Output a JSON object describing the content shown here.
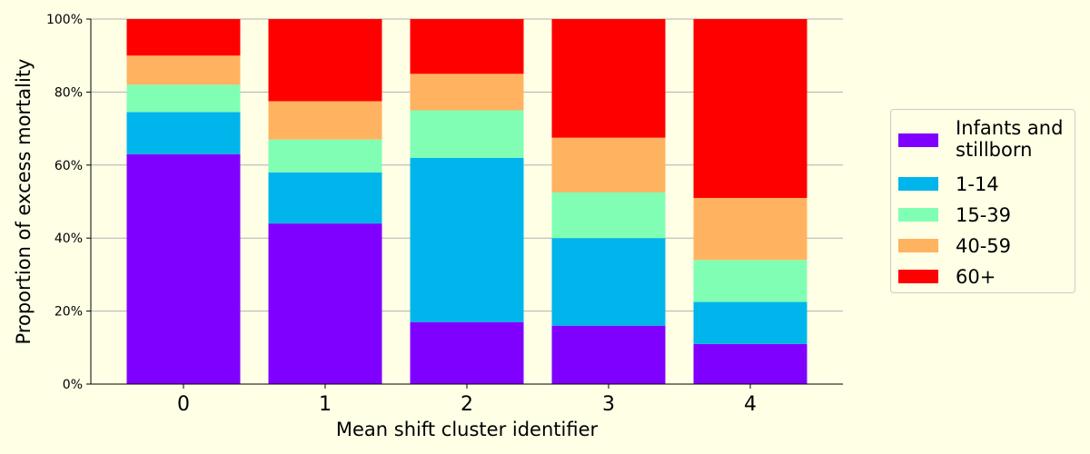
{
  "chart_data": {
    "type": "bar",
    "stacked": true,
    "categories": [
      "0",
      "1",
      "2",
      "3",
      "4"
    ],
    "xlabel": "Mean shift cluster identifier",
    "ylabel": "Proportion of excess mortality",
    "ylim": [
      0,
      1
    ],
    "yticks": [
      "0%",
      "20%",
      "40%",
      "60%",
      "80%",
      "100%"
    ],
    "grid": "horizontal",
    "legend_position": "right",
    "series": [
      {
        "name": "Infants and stillborn",
        "color": "#8000ff",
        "values": [
          0.63,
          0.44,
          0.17,
          0.16,
          0.11
        ]
      },
      {
        "name": "1-14",
        "color": "#00b5eb",
        "values": [
          0.115,
          0.14,
          0.45,
          0.24,
          0.115
        ]
      },
      {
        "name": "15-39",
        "color": "#80ffb4",
        "values": [
          0.075,
          0.09,
          0.13,
          0.125,
          0.115
        ]
      },
      {
        "name": "40-59",
        "color": "#ffb360",
        "values": [
          0.08,
          0.105,
          0.1,
          0.15,
          0.17
        ]
      },
      {
        "name": "60+",
        "color": "#ff0000",
        "values": [
          0.1,
          0.225,
          0.15,
          0.325,
          0.49
        ]
      }
    ]
  }
}
